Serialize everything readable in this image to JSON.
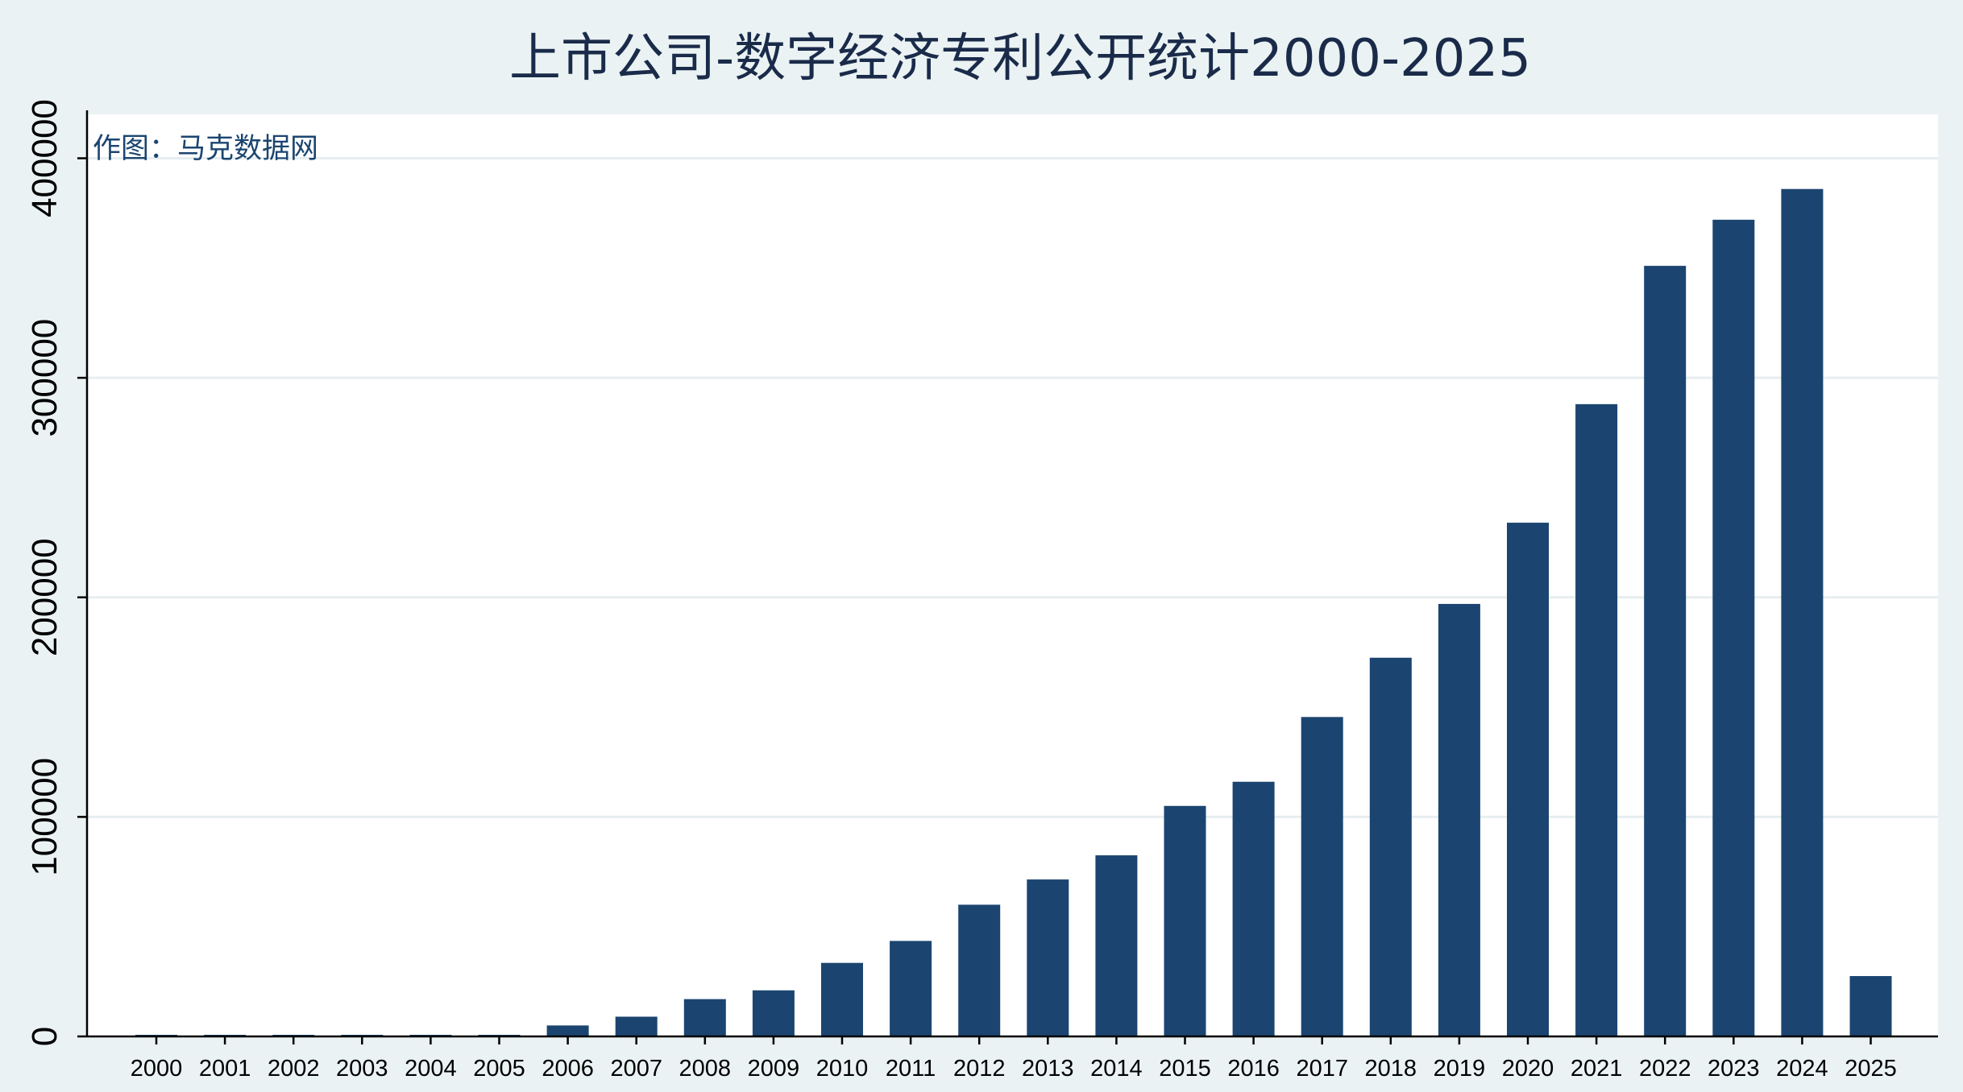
{
  "chart_data": {
    "type": "bar",
    "title": "上市公司-数字经济专利公开统计2000-2025",
    "annotation": "作图：马克数据网",
    "xlabel": "",
    "ylabel": "",
    "ylim": [
      0,
      420000
    ],
    "yticks": [
      0,
      100000,
      200000,
      300000,
      400000
    ],
    "ytick_labels": [
      "0",
      "100000",
      "200000",
      "300000",
      "400000"
    ],
    "grid": true,
    "legend": "none",
    "categories": [
      "2000",
      "2001",
      "2002",
      "2003",
      "2004",
      "2005",
      "2006",
      "2007",
      "2008",
      "2009",
      "2010",
      "2011",
      "2012",
      "2013",
      "2014",
      "2015",
      "2016",
      "2017",
      "2018",
      "2019",
      "2020",
      "2021",
      "2022",
      "2023",
      "2024",
      "2025"
    ],
    "values": [
      300,
      350,
      400,
      450,
      500,
      700,
      5000,
      9000,
      17000,
      21000,
      33500,
      43500,
      60000,
      71500,
      82500,
      105000,
      116000,
      145500,
      172500,
      197000,
      234000,
      288000,
      351000,
      372000,
      386000,
      27500
    ],
    "colors": {
      "bar": "#1b4570",
      "background": "#eaf2f3",
      "plot": "#ffffff",
      "grid": "#e6eef0",
      "axis": "#000000",
      "title": "#1a2b4a",
      "annotation": "#1b4570"
    }
  }
}
